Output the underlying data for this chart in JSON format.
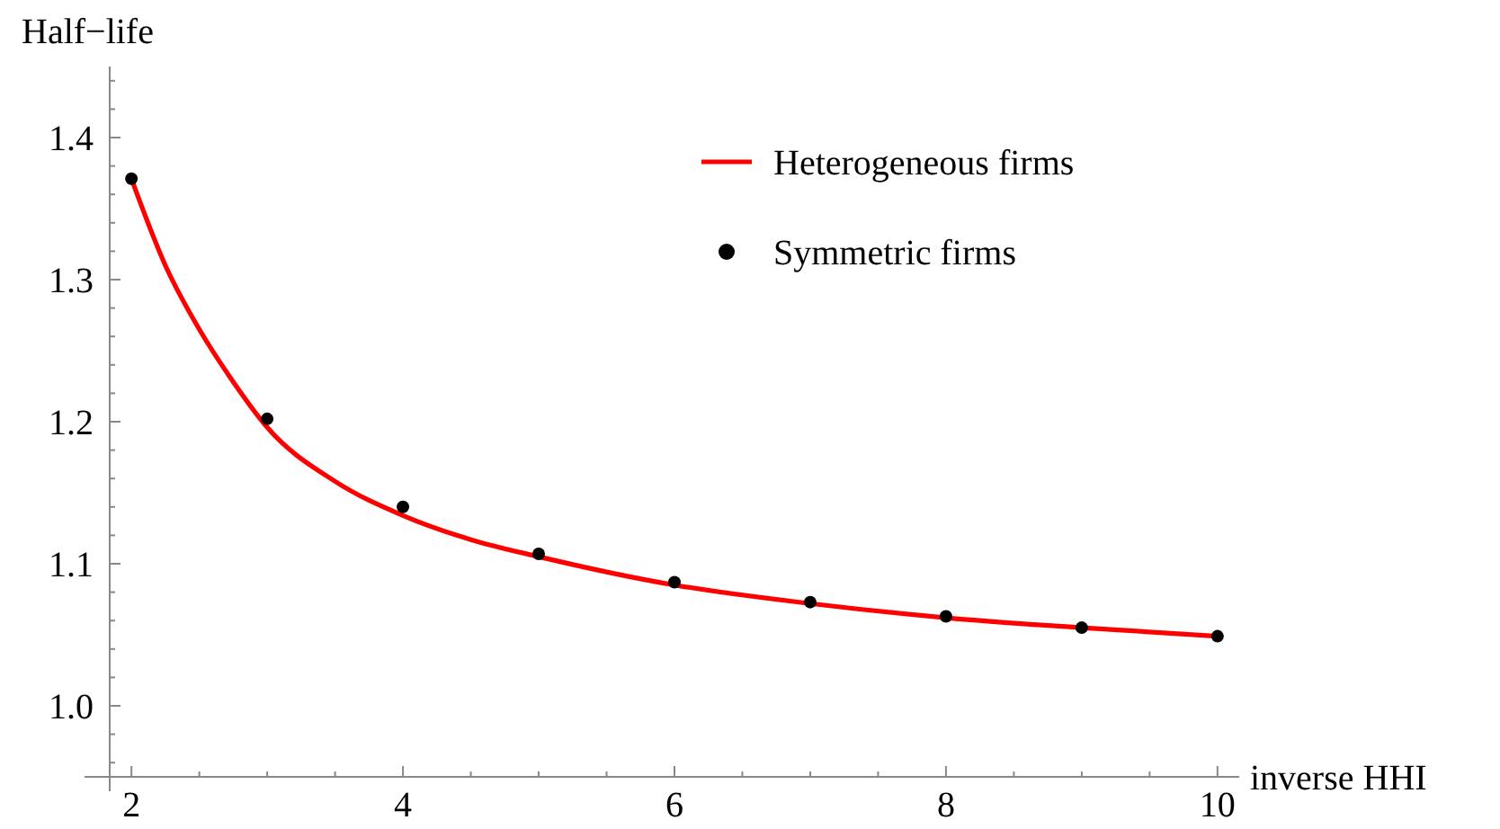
{
  "chart_data": {
    "type": "line",
    "xlabel": "inverse HHI",
    "ylabel": "Half−life",
    "xlim": [
      1.84,
      10.16
    ],
    "ylim": [
      0.95,
      1.45
    ],
    "xticks": [
      2,
      {
        "value": 2.5,
        "label": null
      },
      {
        "value": 3,
        "label": null
      },
      {
        "value": 3.5,
        "label": null
      },
      4,
      {
        "value": 4.5,
        "label": null
      },
      {
        "value": 5,
        "label": null
      },
      {
        "value": 5.5,
        "label": null
      },
      6,
      {
        "value": 6.5,
        "label": null
      },
      {
        "value": 7,
        "label": null
      },
      {
        "value": 7.5,
        "label": null
      },
      8,
      {
        "value": 8.5,
        "label": null
      },
      {
        "value": 9,
        "label": null
      },
      {
        "value": 9.5,
        "label": null
      },
      10
    ],
    "yticks": [
      {
        "value": 0.96,
        "label": null
      },
      {
        "value": 0.98,
        "label": null
      },
      {
        "value": 1.0,
        "label": "1.0"
      },
      {
        "value": 1.02,
        "label": null
      },
      {
        "value": 1.04,
        "label": null
      },
      {
        "value": 1.06,
        "label": null
      },
      {
        "value": 1.08,
        "label": null
      },
      1.1,
      {
        "value": 1.12,
        "label": null
      },
      {
        "value": 1.14,
        "label": null
      },
      {
        "value": 1.16,
        "label": null
      },
      {
        "value": 1.18,
        "label": null
      },
      1.2,
      {
        "value": 1.22,
        "label": null
      },
      {
        "value": 1.24,
        "label": null
      },
      {
        "value": 1.26,
        "label": null
      },
      {
        "value": 1.28,
        "label": null
      },
      1.3,
      {
        "value": 1.32,
        "label": null
      },
      {
        "value": 1.34,
        "label": null
      },
      {
        "value": 1.36,
        "label": null
      },
      {
        "value": 1.38,
        "label": null
      },
      1.4,
      {
        "value": 1.42,
        "label": null
      },
      {
        "value": 1.44,
        "label": null
      }
    ],
    "grid": false,
    "legend": "top right",
    "series": [
      {
        "name": "Heterogeneous firms",
        "type": "line",
        "color": "#ff0000",
        "marker": "none",
        "line_style": "solid",
        "x": [
          2,
          2.25,
          2.5,
          2.75,
          3,
          3.5,
          4,
          4.5,
          5,
          6,
          7,
          8,
          9,
          10
        ],
        "values": [
          1.371,
          1.31,
          1.265,
          1.228,
          1.196,
          1.158,
          1.134,
          1.117,
          1.105,
          1.085,
          1.072,
          1.062,
          1.055,
          1.049
        ]
      },
      {
        "name": "Symmetric firms",
        "type": "scatter",
        "color": "#000000",
        "marker": "circle",
        "x": [
          2,
          3,
          4,
          5,
          6,
          7,
          8,
          9,
          10
        ],
        "values": [
          1.371,
          1.202,
          1.14,
          1.107,
          1.087,
          1.073,
          1.063,
          1.055,
          1.049
        ]
      }
    ]
  }
}
